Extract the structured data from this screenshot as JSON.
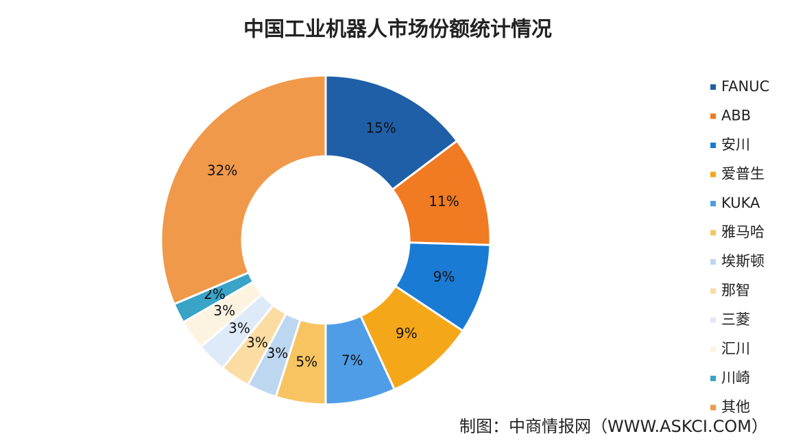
{
  "chart_data": {
    "type": "pie",
    "title": "中国工业机器人市场份额统计情况",
    "categories": [
      "FANUC",
      "ABB",
      "安川",
      "爱普生",
      "KUKA",
      "雅马哈",
      "埃斯顿",
      "那智",
      "三菱",
      "汇川",
      "川崎",
      "其他"
    ],
    "values": [
      15,
      11,
      9,
      9,
      7,
      5,
      3,
      3,
      3,
      3,
      2,
      32
    ],
    "value_labels": [
      "15%",
      "11%",
      "9%",
      "9%",
      "7%",
      "5%",
      "3%",
      "3%",
      "3%",
      "3%",
      "2%",
      "32%"
    ],
    "colors": [
      "#1f5fa8",
      "#f07b22",
      "#1a7bd4",
      "#f5a71a",
      "#4f9de6",
      "#f8c462",
      "#bdd7f1",
      "#fbdca3",
      "#deeaf8",
      "#fdf3e1",
      "#3aa3c8",
      "#f0994a"
    ],
    "legend": "right",
    "source": "制图：中商情报网（WWW.ASKCI.COM）"
  }
}
